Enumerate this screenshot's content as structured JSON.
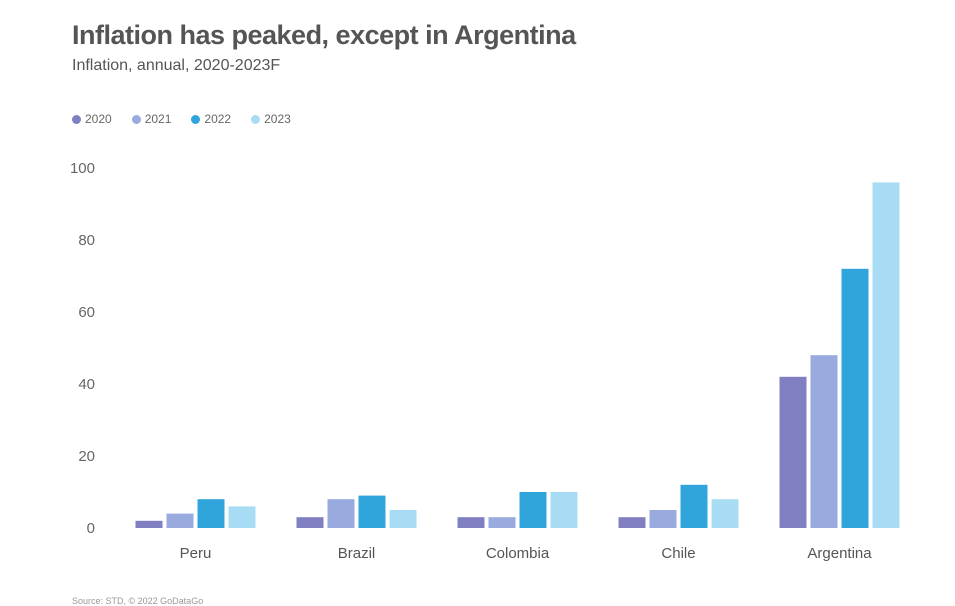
{
  "header": {
    "title": "Inflation has peaked, except in Argentina",
    "subtitle": "Inflation, annual, 2020-2023F"
  },
  "footer": {
    "source": "Source: STD, © 2022 GoDataGo"
  },
  "chart_data": {
    "type": "bar",
    "title": "Inflation has peaked, except in Argentina",
    "subtitle": "Inflation, annual, 2020-2023F",
    "categories": [
      "Peru",
      "Brazil",
      "Colombia",
      "Chile",
      "Argentina"
    ],
    "series": [
      {
        "name": "2020",
        "color": "#7f7fc1",
        "values": [
          2,
          3,
          3,
          3,
          42
        ]
      },
      {
        "name": "2021",
        "color": "#99aadf",
        "values": [
          4,
          8,
          3,
          5,
          48
        ]
      },
      {
        "name": "2022",
        "color": "#30a5dc",
        "values": [
          8,
          9,
          10,
          12,
          72
        ]
      },
      {
        "name": "2023",
        "color": "#a8dcf4",
        "values": [
          6,
          5,
          10,
          8,
          96
        ]
      }
    ],
    "yticks": [
      "0",
      "20",
      "40",
      "60",
      "80",
      "100"
    ],
    "ylim": [
      0,
      100
    ],
    "grid": false,
    "legend_position": "top-left"
  }
}
